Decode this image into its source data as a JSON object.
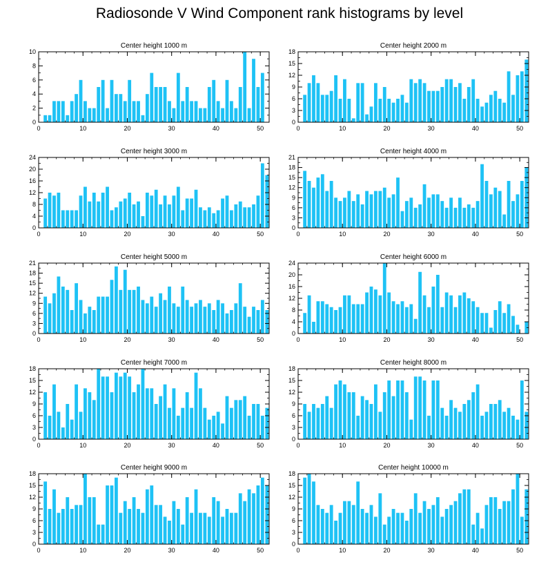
{
  "figure": {
    "title": "Radiosonde V Wind Component rank histograms by level"
  },
  "chart_data": [
    {
      "type": "bar",
      "title": "Center height 1000 m",
      "x": [
        0,
        1,
        2,
        3,
        4,
        5,
        6,
        7,
        8,
        9,
        10,
        11,
        12,
        13,
        14,
        15,
        16,
        17,
        18,
        19,
        20,
        21,
        22,
        23,
        24,
        25,
        26,
        27,
        28,
        29,
        30,
        31,
        32,
        33,
        34,
        35,
        36,
        37,
        38,
        39,
        40,
        41,
        42,
        43,
        44,
        45,
        46,
        47,
        48,
        49,
        50,
        51
      ],
      "values": [
        0,
        1,
        1,
        3,
        3,
        3,
        1,
        3,
        4,
        6,
        3,
        2,
        2,
        5,
        6,
        2,
        6,
        4,
        4,
        3,
        6,
        3,
        3,
        1,
        4,
        7,
        5,
        5,
        5,
        3,
        2,
        7,
        3,
        5,
        3,
        3,
        2,
        2,
        5,
        6,
        3,
        2,
        6,
        3,
        2,
        5,
        10,
        2,
        9,
        5,
        7,
        0
      ],
      "xlim": [
        0,
        52
      ],
      "ylim": [
        0,
        10
      ],
      "xticks": [
        0,
        10,
        20,
        30,
        40,
        50
      ],
      "yticks": [
        0,
        2,
        4,
        6,
        8,
        10
      ],
      "bar_color": "#1ec2f5"
    },
    {
      "type": "bar",
      "title": "Center height 2000 m",
      "x": [
        0,
        1,
        2,
        3,
        4,
        5,
        6,
        7,
        8,
        9,
        10,
        11,
        12,
        13,
        14,
        15,
        16,
        17,
        18,
        19,
        20,
        21,
        22,
        23,
        24,
        25,
        26,
        27,
        28,
        29,
        30,
        31,
        32,
        33,
        34,
        35,
        36,
        37,
        38,
        39,
        40,
        41,
        42,
        43,
        44,
        45,
        46,
        47,
        48,
        49,
        50,
        51
      ],
      "values": [
        0,
        7,
        10,
        12,
        10,
        7,
        7,
        8,
        12,
        6,
        11,
        6,
        1,
        10,
        10,
        2,
        4,
        10,
        6,
        9,
        6,
        5,
        6,
        7,
        5,
        11,
        10,
        11,
        10,
        8,
        8,
        8,
        9,
        11,
        11,
        9,
        10,
        6,
        9,
        11,
        6,
        4,
        5,
        7,
        8,
        6,
        5,
        13,
        7,
        12,
        13,
        16
      ],
      "xlim": [
        0,
        52
      ],
      "ylim": [
        0,
        18
      ],
      "xticks": [
        0,
        10,
        20,
        30,
        40,
        50
      ],
      "yticks": [
        0,
        3,
        6,
        9,
        12,
        15,
        18
      ],
      "bar_color": "#1ec2f5"
    },
    {
      "type": "bar",
      "title": "Center height 3000 m",
      "x": [
        0,
        1,
        2,
        3,
        4,
        5,
        6,
        7,
        8,
        9,
        10,
        11,
        12,
        13,
        14,
        15,
        16,
        17,
        18,
        19,
        20,
        21,
        22,
        23,
        24,
        25,
        26,
        27,
        28,
        29,
        30,
        31,
        32,
        33,
        34,
        35,
        36,
        37,
        38,
        39,
        40,
        41,
        42,
        43,
        44,
        45,
        46,
        47,
        48,
        49,
        50,
        51
      ],
      "values": [
        0,
        10,
        12,
        11,
        12,
        6,
        6,
        6,
        6,
        11,
        14,
        9,
        12,
        9,
        12,
        14,
        6,
        7,
        9,
        10,
        12,
        8,
        9,
        4,
        12,
        11,
        13,
        8,
        11,
        8,
        11,
        14,
        6,
        10,
        10,
        13,
        7,
        6,
        7,
        5,
        6,
        10,
        11,
        6,
        8,
        9,
        7,
        7,
        8,
        11,
        22,
        18
      ],
      "xlim": [
        0,
        52
      ],
      "ylim": [
        0,
        24
      ],
      "xticks": [
        0,
        10,
        20,
        30,
        40,
        50
      ],
      "yticks": [
        0,
        4,
        8,
        12,
        16,
        20,
        24
      ],
      "bar_color": "#1ec2f5"
    },
    {
      "type": "bar",
      "title": "Center height 4000 m",
      "x": [
        0,
        1,
        2,
        3,
        4,
        5,
        6,
        7,
        8,
        9,
        10,
        11,
        12,
        13,
        14,
        15,
        16,
        17,
        18,
        19,
        20,
        21,
        22,
        23,
        24,
        25,
        26,
        27,
        28,
        29,
        30,
        31,
        32,
        33,
        34,
        35,
        36,
        37,
        38,
        39,
        40,
        41,
        42,
        43,
        44,
        45,
        46,
        47,
        48,
        49,
        50,
        51
      ],
      "values": [
        0,
        17,
        14,
        12,
        15,
        16,
        11,
        14,
        9,
        8,
        9,
        11,
        8,
        10,
        7,
        11,
        10,
        11,
        11,
        12,
        9,
        10,
        15,
        5,
        8,
        9,
        6,
        7,
        13,
        9,
        10,
        10,
        8,
        6,
        9,
        6,
        9,
        6,
        7,
        6,
        8,
        19,
        14,
        10,
        12,
        11,
        4,
        14,
        8,
        10,
        14,
        18
      ],
      "xlim": [
        0,
        52
      ],
      "ylim": [
        0,
        21
      ],
      "xticks": [
        0,
        10,
        20,
        30,
        40,
        50
      ],
      "yticks": [
        0,
        3,
        6,
        9,
        12,
        15,
        18,
        21
      ],
      "bar_color": "#1ec2f5"
    },
    {
      "type": "bar",
      "title": "Center height 5000 m",
      "x": [
        0,
        1,
        2,
        3,
        4,
        5,
        6,
        7,
        8,
        9,
        10,
        11,
        12,
        13,
        14,
        15,
        16,
        17,
        18,
        19,
        20,
        21,
        22,
        23,
        24,
        25,
        26,
        27,
        28,
        29,
        30,
        31,
        32,
        33,
        34,
        35,
        36,
        37,
        38,
        39,
        40,
        41,
        42,
        43,
        44,
        45,
        46,
        47,
        48,
        49,
        50,
        51
      ],
      "values": [
        0,
        11,
        9,
        12,
        17,
        14,
        13,
        7,
        15,
        10,
        6,
        8,
        7,
        11,
        11,
        11,
        16,
        20,
        13,
        19,
        13,
        13,
        14,
        10,
        9,
        11,
        8,
        12,
        10,
        14,
        9,
        8,
        14,
        10,
        8,
        9,
        10,
        8,
        9,
        7,
        10,
        9,
        6,
        7,
        9,
        15,
        8,
        5,
        8,
        7,
        10,
        7
      ],
      "xlim": [
        0,
        52
      ],
      "ylim": [
        0,
        21
      ],
      "xticks": [
        0,
        10,
        20,
        30,
        40,
        50
      ],
      "yticks": [
        0,
        3,
        6,
        9,
        12,
        15,
        18,
        21
      ],
      "bar_color": "#1ec2f5"
    },
    {
      "type": "bar",
      "title": "Center height 6000 m",
      "x": [
        0,
        1,
        2,
        3,
        4,
        5,
        6,
        7,
        8,
        9,
        10,
        11,
        12,
        13,
        14,
        15,
        16,
        17,
        18,
        19,
        20,
        21,
        22,
        23,
        24,
        25,
        26,
        27,
        28,
        29,
        30,
        31,
        32,
        33,
        34,
        35,
        36,
        37,
        38,
        39,
        40,
        41,
        42,
        43,
        44,
        45,
        46,
        47,
        48,
        49,
        50,
        51
      ],
      "values": [
        0,
        7,
        13,
        4,
        11,
        11,
        10,
        9,
        8,
        9,
        13,
        13,
        10,
        10,
        10,
        14,
        16,
        15,
        13,
        24,
        14,
        11,
        10,
        11,
        9,
        10,
        5,
        21,
        13,
        9,
        16,
        20,
        9,
        14,
        13,
        9,
        13,
        14,
        12,
        11,
        9,
        7,
        7,
        2,
        8,
        11,
        7,
        10,
        6,
        3,
        0,
        4
      ],
      "xlim": [
        0,
        52
      ],
      "ylim": [
        0,
        24
      ],
      "xticks": [
        0,
        10,
        20,
        30,
        40,
        50
      ],
      "yticks": [
        0,
        4,
        8,
        12,
        16,
        20,
        24
      ],
      "bar_color": "#1ec2f5"
    },
    {
      "type": "bar",
      "title": "Center height 7000 m",
      "x": [
        0,
        1,
        2,
        3,
        4,
        5,
        6,
        7,
        8,
        9,
        10,
        11,
        12,
        13,
        14,
        15,
        16,
        17,
        18,
        19,
        20,
        21,
        22,
        23,
        24,
        25,
        26,
        27,
        28,
        29,
        30,
        31,
        32,
        33,
        34,
        35,
        36,
        37,
        38,
        39,
        40,
        41,
        42,
        43,
        44,
        45,
        46,
        47,
        48,
        49,
        50,
        51
      ],
      "values": [
        0,
        12,
        6,
        14,
        7,
        3,
        9,
        5,
        14,
        7,
        13,
        12,
        10,
        18,
        16,
        16,
        12,
        17,
        16,
        17,
        16,
        12,
        14,
        18,
        13,
        13,
        9,
        11,
        14,
        8,
        13,
        6,
        8,
        12,
        8,
        17,
        13,
        8,
        5,
        6,
        7,
        4,
        11,
        8,
        10,
        10,
        11,
        6,
        9,
        9,
        6,
        8
      ],
      "xlim": [
        0,
        52
      ],
      "ylim": [
        0,
        18
      ],
      "xticks": [
        0,
        10,
        20,
        30,
        40,
        50
      ],
      "yticks": [
        0,
        3,
        6,
        9,
        12,
        15,
        18
      ],
      "bar_color": "#1ec2f5"
    },
    {
      "type": "bar",
      "title": "Center height 8000 m",
      "x": [
        0,
        1,
        2,
        3,
        4,
        5,
        6,
        7,
        8,
        9,
        10,
        11,
        12,
        13,
        14,
        15,
        16,
        17,
        18,
        19,
        20,
        21,
        22,
        23,
        24,
        25,
        26,
        27,
        28,
        29,
        30,
        31,
        32,
        33,
        34,
        35,
        36,
        37,
        38,
        39,
        40,
        41,
        42,
        43,
        44,
        45,
        46,
        47,
        48,
        49,
        50,
        51
      ],
      "values": [
        0,
        9,
        7,
        9,
        8,
        9,
        11,
        8,
        14,
        15,
        14,
        12,
        12,
        6,
        11,
        10,
        9,
        14,
        7,
        12,
        15,
        11,
        15,
        15,
        12,
        5,
        16,
        16,
        15,
        6,
        15,
        15,
        8,
        6,
        10,
        8,
        7,
        9,
        10,
        12,
        14,
        6,
        7,
        9,
        9,
        10,
        7,
        8,
        6,
        5,
        15,
        7
      ],
      "xlim": [
        0,
        52
      ],
      "ylim": [
        0,
        18
      ],
      "xticks": [
        0,
        10,
        20,
        30,
        40,
        50
      ],
      "yticks": [
        0,
        3,
        6,
        9,
        12,
        15,
        18
      ],
      "bar_color": "#1ec2f5"
    },
    {
      "type": "bar",
      "title": "Center height 9000 m",
      "x": [
        0,
        1,
        2,
        3,
        4,
        5,
        6,
        7,
        8,
        9,
        10,
        11,
        12,
        13,
        14,
        15,
        16,
        17,
        18,
        19,
        20,
        21,
        22,
        23,
        24,
        25,
        26,
        27,
        28,
        29,
        30,
        31,
        32,
        33,
        34,
        35,
        36,
        37,
        38,
        39,
        40,
        41,
        42,
        43,
        44,
        45,
        46,
        47,
        48,
        49,
        50,
        51
      ],
      "values": [
        0,
        16,
        9,
        14,
        8,
        9,
        12,
        9,
        10,
        10,
        18,
        12,
        12,
        5,
        5,
        15,
        15,
        17,
        8,
        11,
        9,
        12,
        9,
        8,
        14,
        15,
        10,
        10,
        7,
        6,
        11,
        9,
        5,
        12,
        8,
        14,
        8,
        8,
        7,
        12,
        11,
        7,
        9,
        8,
        8,
        13,
        11,
        14,
        13,
        15,
        17,
        15
      ],
      "xlim": [
        0,
        52
      ],
      "ylim": [
        0,
        18
      ],
      "xticks": [
        0,
        10,
        20,
        30,
        40,
        50
      ],
      "yticks": [
        0,
        3,
        6,
        9,
        12,
        15,
        18
      ],
      "bar_color": "#1ec2f5"
    },
    {
      "type": "bar",
      "title": "Center height 10000 m",
      "x": [
        0,
        1,
        2,
        3,
        4,
        5,
        6,
        7,
        8,
        9,
        10,
        11,
        12,
        13,
        14,
        15,
        16,
        17,
        18,
        19,
        20,
        21,
        22,
        23,
        24,
        25,
        26,
        27,
        28,
        29,
        30,
        31,
        32,
        33,
        34,
        35,
        36,
        37,
        38,
        39,
        40,
        41,
        42,
        43,
        44,
        45,
        46,
        47,
        48,
        49,
        50,
        51
      ],
      "values": [
        0,
        17,
        18,
        16,
        10,
        9,
        8,
        10,
        6,
        8,
        11,
        11,
        10,
        16,
        9,
        8,
        10,
        7,
        13,
        5,
        7,
        9,
        8,
        8,
        6,
        9,
        13,
        8,
        11,
        9,
        10,
        12,
        7,
        9,
        10,
        11,
        13,
        14,
        14,
        5,
        8,
        4,
        10,
        12,
        12,
        9,
        11,
        11,
        14,
        18,
        7,
        14
      ],
      "xlim": [
        0,
        52
      ],
      "ylim": [
        0,
        18
      ],
      "xticks": [
        0,
        10,
        20,
        30,
        40,
        50
      ],
      "yticks": [
        0,
        3,
        6,
        9,
        12,
        15,
        18
      ],
      "bar_color": "#1ec2f5"
    }
  ]
}
